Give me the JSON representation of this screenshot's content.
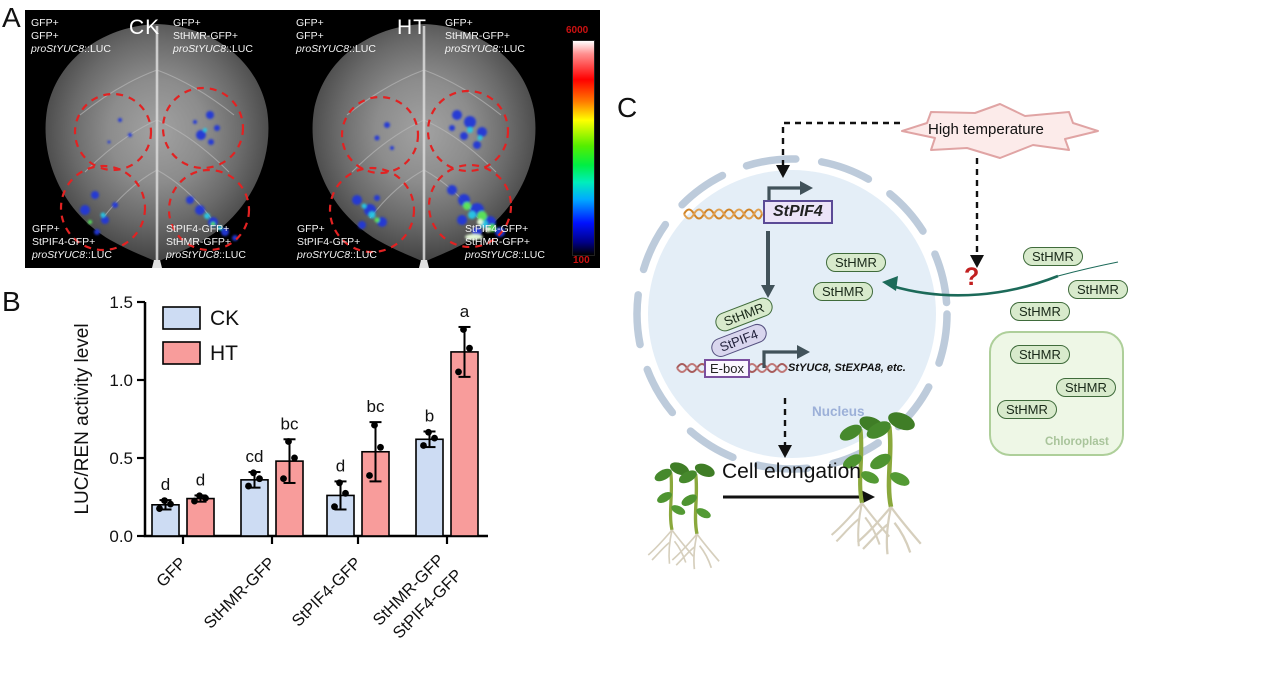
{
  "figure": {
    "panel_a_label": "A",
    "panel_b_label": "B",
    "panel_c_label": "C"
  },
  "panelA": {
    "conditions": [
      "CK",
      "HT"
    ],
    "constructs": {
      "tl": [
        "GFP+",
        "GFP+"
      ],
      "tr": [
        "GFP+",
        "StHMR-GFP+"
      ],
      "bl": [
        "GFP+",
        "StPIF4-GFP+"
      ],
      "br": [
        "StPIF4-GFP+",
        "StHMR-GFP+"
      ]
    },
    "reporter_italic": "proStYUC8",
    "reporter_regular": "::LUC",
    "colorbar": {
      "max": "6000",
      "min": "100"
    }
  },
  "chart_data": {
    "type": "bar",
    "title": "",
    "ylabel": "LUC/REN activity level",
    "xlabel": "",
    "ylim": [
      0,
      1.5
    ],
    "yticks": [
      0,
      0.5,
      1.0,
      1.5
    ],
    "grid": false,
    "legend_position": "top-left-inside",
    "categories": [
      [
        "GFP"
      ],
      [
        "StHMR-GFP"
      ],
      [
        "StPIF4-GFP"
      ],
      [
        "StHMR-GFP",
        "StPIF4-GFP"
      ]
    ],
    "series": [
      {
        "name": "CK",
        "color": "#cddcf3",
        "values": [
          0.2,
          0.36,
          0.26,
          0.62
        ],
        "errors": [
          0.03,
          0.05,
          0.09,
          0.05
        ],
        "letters": [
          "d",
          "cd",
          "d",
          "b"
        ]
      },
      {
        "name": "HT",
        "color": "#f89c9b",
        "values": [
          0.24,
          0.48,
          0.54,
          1.18
        ],
        "errors": [
          0.02,
          0.14,
          0.19,
          0.16
        ],
        "letters": [
          "d",
          "bc",
          "bc",
          "a"
        ]
      }
    ],
    "replicates_per_bar": 3
  },
  "panelC": {
    "high_temperature": "High temperature",
    "sthmr": "StHMR",
    "stpif4_gene": "StPIF4",
    "stpif4_protein": "StPIF4",
    "ebox": "E-box",
    "targets": "StYUC8, StEXPA8, etc.",
    "nucleus": "Nucleus",
    "chloroplast": "Chloroplast",
    "cell_elongation": "Cell elongation",
    "question_mark": "?"
  },
  "colors": {
    "ck_fill": "#cddcf3",
    "ht_fill": "#f89c9b",
    "dashed_circle": "#e22222",
    "colorbar_label": "#cc1111",
    "teal_arrow": "#1c6a59",
    "question_red": "#c22020",
    "nucleus_fill": "#e4eef7",
    "pill_green": "#d8eacc",
    "chloroplast_fill": "#eef7e6"
  }
}
